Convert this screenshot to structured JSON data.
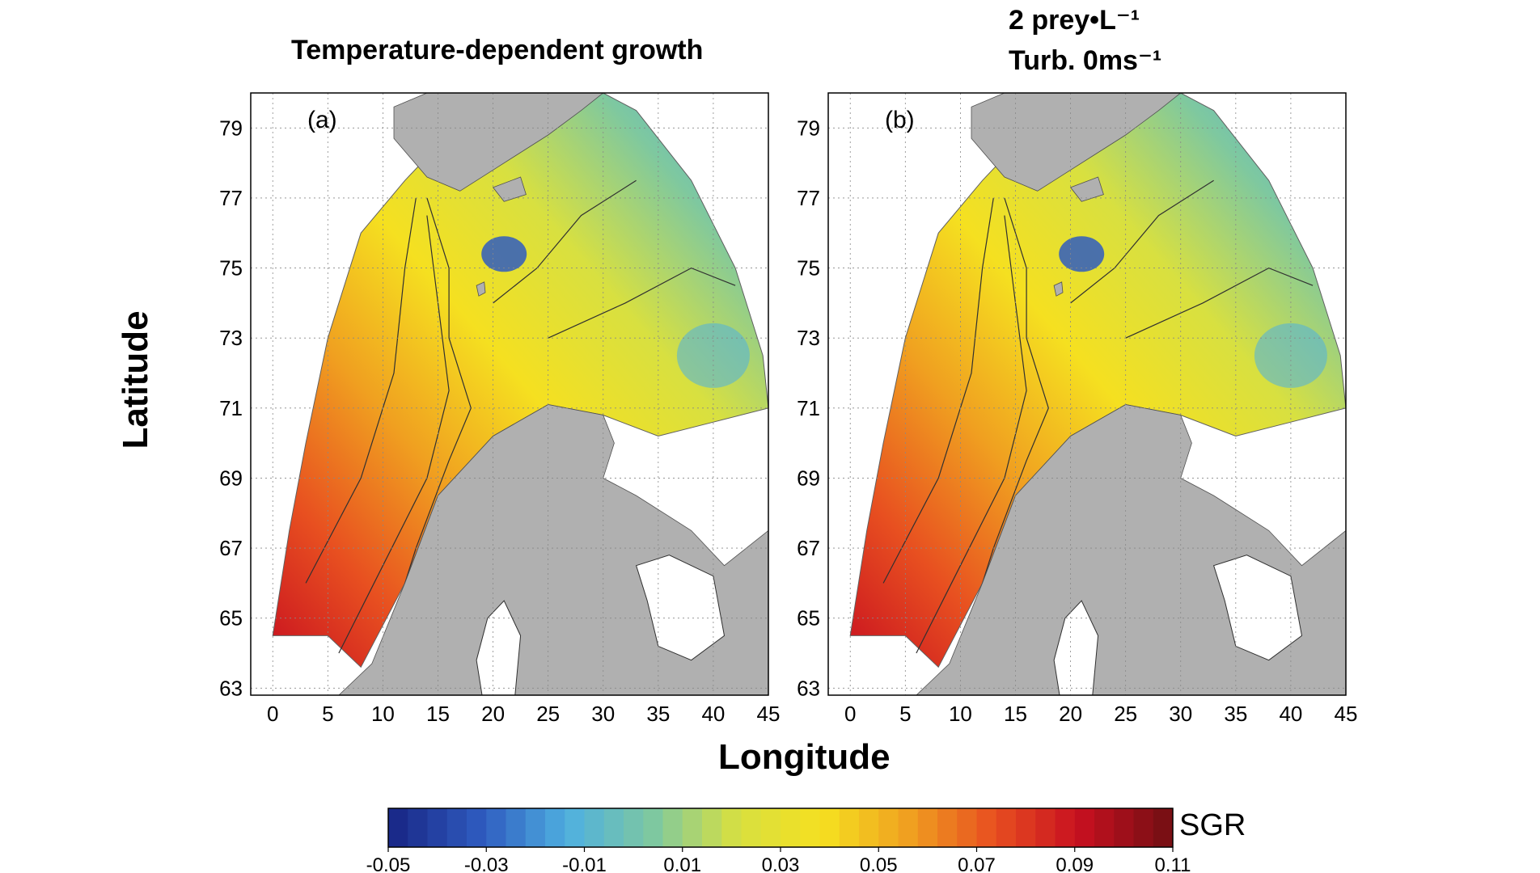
{
  "panels": [
    {
      "title_lines": [
        "Temperature-dependent growth"
      ],
      "tag": "(a)"
    },
    {
      "title_lines": [
        "2 prey•L⁻¹",
        "Turb. 0ms⁻¹"
      ],
      "tag": "(b)"
    }
  ],
  "chart_data": {
    "type": "heatmap",
    "xlabel": "Longitude",
    "ylabel": "Latitude",
    "x_ticks": [
      0,
      5,
      10,
      15,
      20,
      25,
      30,
      35,
      40,
      45
    ],
    "y_ticks": [
      63,
      65,
      67,
      69,
      71,
      73,
      75,
      77,
      79
    ],
    "xlim": [
      -2,
      45
    ],
    "ylim": [
      62.8,
      80
    ],
    "grid": true,
    "colorbar": {
      "label": "SGR",
      "range": [
        -0.05,
        0.11
      ],
      "tick_labels": [
        "-0.05",
        "-0.03",
        "-0.01",
        "0.01",
        "0.03",
        "0.05",
        "0.07",
        "0.09",
        "0.11"
      ]
    },
    "color_scale": [
      "#1a2a8a",
      "#2f5cc0",
      "#4fb0e0",
      "#7ec8a0",
      "#d8e040",
      "#f5e020",
      "#f0a020",
      "#e85020",
      "#c81020",
      "#7a0f14"
    ],
    "land_color": "#b0b0b0"
  }
}
